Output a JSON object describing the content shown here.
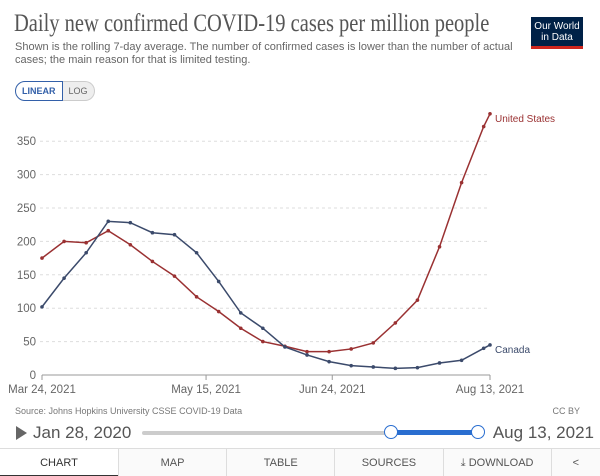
{
  "header": {
    "title": "Daily new confirmed COVID-19 cases per million people",
    "subtitle": "Shown is the rolling 7-day average. The number of confirmed cases is lower than the number of actual cases; the main reason for that is limited testing.",
    "logo": "Our World in Data"
  },
  "scale_toggle": {
    "linear": "LINEAR",
    "log": "LOG",
    "selected": "LINEAR"
  },
  "chart_data": {
    "type": "line",
    "title": "Daily new confirmed COVID-19 cases per million people",
    "x": [
      "Mar 24, 2021",
      "Mar 31, 2021",
      "Apr 7, 2021",
      "Apr 14, 2021",
      "Apr 21, 2021",
      "Apr 28, 2021",
      "May 5, 2021",
      "May 12, 2021",
      "May 19, 2021",
      "May 26, 2021",
      "Jun 2, 2021",
      "Jun 9, 2021",
      "Jun 16, 2021",
      "Jun 23, 2021",
      "Jun 30, 2021",
      "Jul 7, 2021",
      "Jul 14, 2021",
      "Jul 21, 2021",
      "Jul 28, 2021",
      "Aug 4, 2021",
      "Aug 11, 2021",
      "Aug 13, 2021"
    ],
    "x_day_offsets": [
      0,
      7,
      14,
      21,
      28,
      35,
      42,
      49,
      56,
      63,
      70,
      77,
      84,
      91,
      98,
      105,
      112,
      119,
      126,
      133,
      140,
      142
    ],
    "series": [
      {
        "name": "United States",
        "color": "#9a3132",
        "values": [
          175,
          200,
          198,
          216,
          195,
          170,
          148,
          117,
          95,
          70,
          50,
          43,
          35,
          35,
          39,
          48,
          78,
          112,
          192,
          288,
          372,
          391
        ]
      },
      {
        "name": "Canada",
        "color": "#3b4a6b",
        "values": [
          102,
          145,
          183,
          230,
          228,
          213,
          210,
          183,
          140,
          93,
          70,
          42,
          30,
          20,
          14,
          12,
          10,
          11,
          18,
          22,
          40,
          45
        ]
      }
    ],
    "x_ticks": [
      {
        "label": "Mar 24, 2021",
        "day": 0
      },
      {
        "label": "May 15, 2021",
        "day": 52
      },
      {
        "label": "Jun 24, 2021",
        "day": 92
      },
      {
        "label": "Aug 13, 2021",
        "day": 142
      }
    ],
    "y_ticks": [
      0,
      50,
      100,
      150,
      200,
      250,
      300,
      350
    ],
    "ylim": [
      0,
      400
    ],
    "xlabel": "",
    "ylabel": "",
    "grid": true,
    "legend": "inline-right"
  },
  "footer": {
    "source": "Source: Johns Hopkins University CSSE COVID-19 Data",
    "license": "CC BY"
  },
  "timeline": {
    "start": "Jan 28, 2020",
    "end": "Aug 13, 2021"
  },
  "tabs": [
    "CHART",
    "MAP",
    "TABLE",
    "SOURCES",
    "DOWNLOAD"
  ],
  "active_tab": "CHART"
}
